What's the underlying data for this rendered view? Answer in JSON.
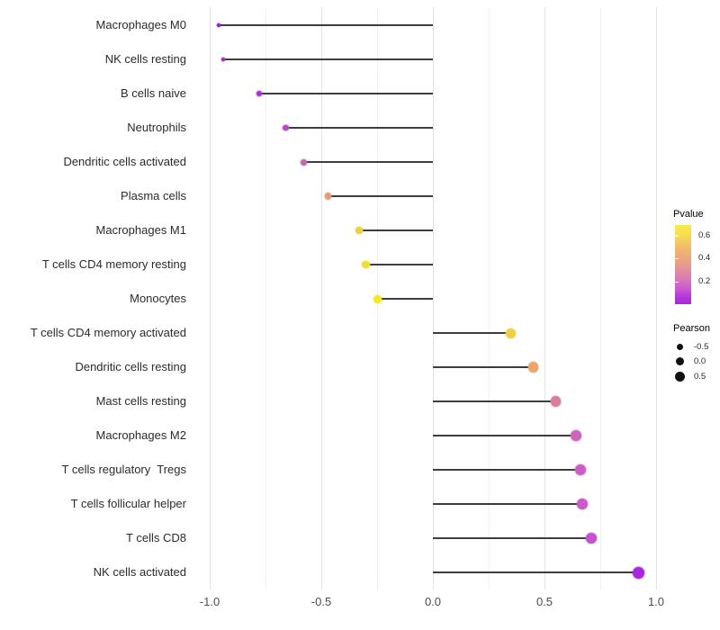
{
  "chart_data": {
    "type": "lollipop",
    "title": "",
    "xlabel": "",
    "ylabel": "",
    "x_axis": {
      "ticks": [
        {
          "label": "-1.0",
          "value": -1.0
        },
        {
          "label": "-0.5",
          "value": -0.5
        },
        {
          "label": "0.0",
          "value": 0.0
        },
        {
          "label": "0.5",
          "value": 0.5
        },
        {
          "label": "1.0",
          "value": 1.0
        }
      ],
      "minor_ticks": [
        -0.75,
        -0.25,
        0.25,
        0.75
      ],
      "range": [
        -1.05,
        1.05
      ],
      "grid": "vertical-only"
    },
    "points": [
      {
        "label": "Macrophages M0",
        "pearson": -0.96,
        "color": "#9b1fd8",
        "size": 4
      },
      {
        "label": "NK cells resting",
        "pearson": -0.94,
        "color": "#a226d6",
        "size": 4.5
      },
      {
        "label": "B cells naive",
        "pearson": -0.78,
        "color": "#a932d2",
        "size": 6
      },
      {
        "label": "Neutrophils",
        "pearson": -0.66,
        "color": "#b847c4",
        "size": 6.5
      },
      {
        "label": "Dendritic cells activated",
        "pearson": -0.58,
        "color": "#c765aa",
        "size": 7
      },
      {
        "label": "Plasma cells",
        "pearson": -0.47,
        "color": "#ea9b75",
        "size": 7.5
      },
      {
        "label": "Macrophages M1",
        "pearson": -0.33,
        "color": "#eed039",
        "size": 8.5
      },
      {
        "label": "T cells CD4 memory resting",
        "pearson": -0.3,
        "color": "#f2dc35",
        "size": 8.5
      },
      {
        "label": "Monocytes",
        "pearson": -0.25,
        "color": "#f6e822",
        "size": 9
      },
      {
        "label": "T cells CD4 memory activated",
        "pearson": 0.35,
        "color": "#eecf45",
        "size": 11
      },
      {
        "label": "Dendritic cells resting",
        "pearson": 0.45,
        "color": "#eda469",
        "size": 11.5
      },
      {
        "label": "Mast cells resting",
        "pearson": 0.55,
        "color": "#d87d9e",
        "size": 11.5
      },
      {
        "label": "Macrophages M2",
        "pearson": 0.64,
        "color": "#cc63bd",
        "size": 12
      },
      {
        "label": "T cells regulatory  Tregs",
        "pearson": 0.66,
        "color": "#ca5ec5",
        "size": 12
      },
      {
        "label": "T cells follicular helper",
        "pearson": 0.67,
        "color": "#c95ac8",
        "size": 12
      },
      {
        "label": "T cells CD8",
        "pearson": 0.71,
        "color": "#c551ce",
        "size": 12.5
      },
      {
        "label": "NK cells activated",
        "pearson": 0.92,
        "color": "#a826dc",
        "size": 13
      }
    ],
    "legend_pvalue": {
      "title": "Pvalue",
      "ticks": [
        {
          "label": "0.6",
          "offset": 0.125
        },
        {
          "label": "0.4",
          "offset": 0.42
        },
        {
          "label": "0.2",
          "offset": 0.715
        }
      ],
      "gradient_colors": [
        "#f9e94f",
        "#f7df4e",
        "#f2c167",
        "#eba77e",
        "#e49298",
        "#da79b8",
        "#cc5ad0",
        "#b233dc",
        "#aa28dc"
      ],
      "gradient_positions": [
        0,
        0.12,
        0.25,
        0.42,
        0.55,
        0.68,
        0.8,
        0.92,
        1
      ]
    },
    "legend_pearson": {
      "title": "Pearson",
      "items": [
        {
          "label": "-0.5",
          "size": 7
        },
        {
          "label": "0.0",
          "size": 9
        },
        {
          "label": "0.5",
          "size": 11
        }
      ]
    }
  }
}
